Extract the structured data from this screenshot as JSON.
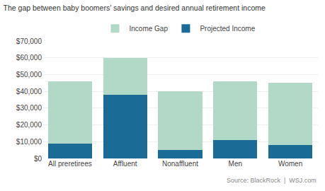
{
  "chart_data": {
    "type": "bar",
    "title": "The gap between baby boomers’ savings and desired annual retirement income",
    "categories": [
      "All preretirees",
      "Affluent",
      "Nonaffluent",
      "Men",
      "Women"
    ],
    "series": [
      {
        "name": "Projected Income",
        "color": "#1a6b96",
        "values": [
          9000,
          38000,
          5000,
          11000,
          8000
        ]
      },
      {
        "name": "Income Gap",
        "color": "#b2d8c8",
        "values": [
          37000,
          22000,
          35000,
          35000,
          37000
        ]
      }
    ],
    "stacked": true,
    "ylim": [
      0,
      70000
    ],
    "yticks": [
      {
        "value": 0,
        "label": "$0"
      },
      {
        "value": 10000,
        "label": "$10,000"
      },
      {
        "value": 20000,
        "label": "$20,000"
      },
      {
        "value": 30000,
        "label": "$30,000"
      },
      {
        "value": 40000,
        "label": "$40,000"
      },
      {
        "value": 50000,
        "label": "$50,000"
      },
      {
        "value": 60000,
        "label": "$60,000"
      },
      {
        "value": 70000,
        "label": "$70,000"
      }
    ],
    "grid": true,
    "legend": "top",
    "annotations": [
      "Source: BlackRock  |  WSJ.com"
    ]
  }
}
